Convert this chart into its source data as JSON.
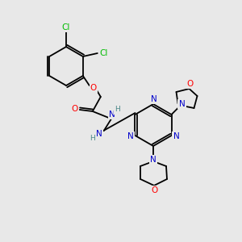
{
  "bg_color": "#e8e8e8",
  "atom_colors": {
    "C": "#000000",
    "N": "#0000cc",
    "O": "#ff0000",
    "Cl": "#00bb00",
    "H": "#4a8888"
  },
  "bond_color": "#000000",
  "lw": 1.3,
  "fontsize": 7.5
}
